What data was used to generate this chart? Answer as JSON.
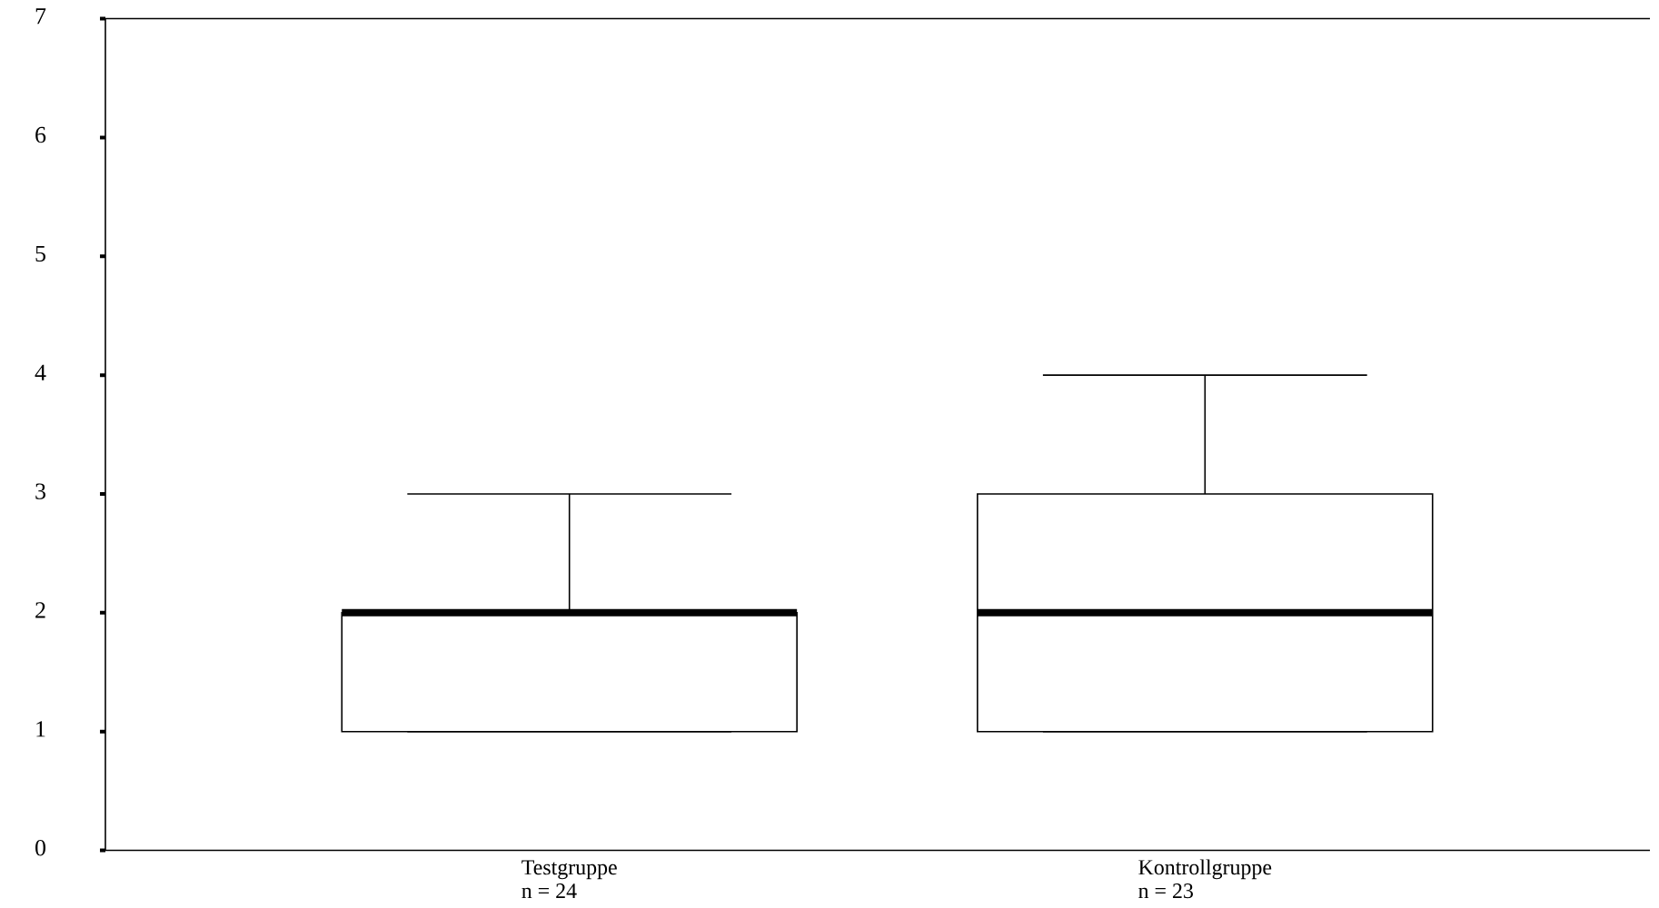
{
  "chart_data": {
    "type": "box",
    "categories": [
      "Testgruppe",
      "Kontrollgruppe"
    ],
    "boxes": [
      {
        "low": 1,
        "q1": 1,
        "median": 2,
        "q3": 2,
        "high": 3
      },
      {
        "low": 1,
        "q1": 1,
        "median": 2,
        "q3": 3,
        "high": 4
      }
    ],
    "annotations": [
      "n = 24",
      "n =  23"
    ],
    "ylim": [
      0,
      7
    ],
    "yticks": [
      0,
      1,
      2,
      3,
      4,
      5,
      6,
      7
    ]
  }
}
